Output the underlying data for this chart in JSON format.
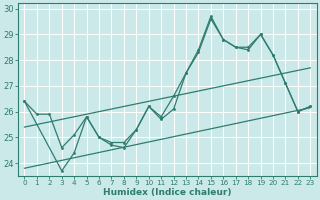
{
  "xlabel": "Humidex (Indice chaleur)",
  "bg_color": "#cce9e9",
  "grid_color": "#ffffff",
  "line_color": "#2e7d6e",
  "xlim": [
    -0.5,
    23.5
  ],
  "ylim": [
    23.5,
    30.2
  ],
  "yticks": [
    24,
    25,
    26,
    27,
    28,
    29,
    30
  ],
  "xticks": [
    0,
    1,
    2,
    3,
    4,
    5,
    6,
    7,
    8,
    9,
    10,
    11,
    12,
    13,
    14,
    15,
    16,
    17,
    18,
    19,
    20,
    21,
    22,
    23
  ],
  "line1_x": [
    0,
    1,
    2,
    3,
    4,
    5,
    6,
    7,
    8,
    9,
    10,
    11,
    12,
    13,
    14,
    15,
    16,
    17,
    18,
    19,
    20,
    21,
    22,
    23
  ],
  "line1_y": [
    26.4,
    25.9,
    25.9,
    24.6,
    25.1,
    25.8,
    25.0,
    24.8,
    24.8,
    25.3,
    26.2,
    25.8,
    26.6,
    27.5,
    28.3,
    29.6,
    28.8,
    28.5,
    28.4,
    29.0,
    28.2,
    27.1,
    26.0,
    26.2
  ],
  "line2_x": [
    0,
    3,
    4,
    5,
    6,
    7,
    8,
    9,
    10,
    11,
    12,
    13,
    14,
    15,
    16,
    17,
    18,
    19,
    20,
    21,
    22,
    23
  ],
  "line2_y": [
    26.4,
    23.7,
    24.4,
    25.8,
    25.0,
    24.7,
    24.6,
    25.3,
    26.2,
    25.7,
    26.1,
    27.5,
    28.4,
    29.7,
    28.8,
    28.5,
    28.5,
    29.0,
    28.2,
    27.1,
    26.0,
    26.2
  ],
  "line3_x": [
    0,
    23
  ],
  "line3_y": [
    23.8,
    26.15
  ],
  "line4_x": [
    0,
    23
  ],
  "line4_y": [
    25.4,
    27.7
  ]
}
